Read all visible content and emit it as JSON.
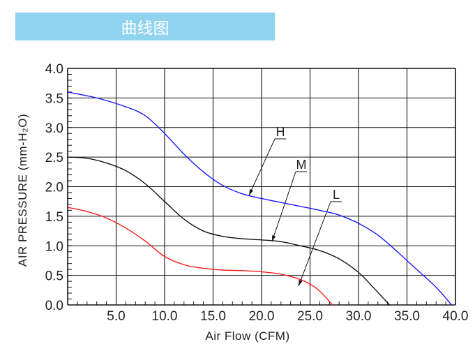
{
  "header": {
    "title": "曲线图",
    "color": "#8fd3ef"
  },
  "chart_data": {
    "type": "line",
    "xlabel": "Air Flow (CFM)",
    "ylabel": "AIR PRESSURE (mm-H₂O)",
    "xlim": [
      0,
      40
    ],
    "ylim": [
      0,
      4.0
    ],
    "x_ticks": [
      "5.0",
      "10.0",
      "15.0",
      "20.0",
      "25.0",
      "30.0",
      "35.0",
      "40.0"
    ],
    "y_ticks": [
      "0.0",
      "0.5",
      "1.0",
      "1.5",
      "2.0",
      "2.5",
      "3.0",
      "3.5",
      "4.0"
    ],
    "grid": true,
    "series": [
      {
        "name": "H",
        "color": "#1a1aff",
        "x": [
          0,
          3,
          6,
          8,
          10,
          12,
          14,
          16,
          18,
          20,
          23,
          26,
          28,
          30,
          32,
          34,
          36,
          38,
          39.6
        ],
        "y": [
          3.6,
          3.5,
          3.35,
          3.2,
          2.9,
          2.55,
          2.25,
          2.02,
          1.88,
          1.8,
          1.7,
          1.6,
          1.52,
          1.38,
          1.18,
          0.9,
          0.6,
          0.3,
          0
        ]
      },
      {
        "name": "M",
        "color": "#111111",
        "x": [
          0,
          2,
          4,
          6,
          8,
          10,
          12,
          14,
          16,
          18,
          20,
          22,
          24,
          26,
          28,
          30,
          31.5,
          33.2
        ],
        "y": [
          2.5,
          2.48,
          2.4,
          2.27,
          2.05,
          1.75,
          1.45,
          1.25,
          1.16,
          1.12,
          1.1,
          1.07,
          1.0,
          0.92,
          0.78,
          0.55,
          0.3,
          0
        ]
      },
      {
        "name": "L",
        "color": "#ff1a1a",
        "x": [
          0,
          2,
          4,
          6,
          8,
          10,
          12,
          14,
          16,
          18,
          20,
          22,
          24,
          25.5,
          26.5,
          27.3
        ],
        "y": [
          1.65,
          1.58,
          1.47,
          1.3,
          1.08,
          0.82,
          0.68,
          0.62,
          0.59,
          0.58,
          0.56,
          0.52,
          0.43,
          0.3,
          0.15,
          0
        ]
      }
    ],
    "annotations": [
      "H",
      "M",
      "L"
    ]
  }
}
